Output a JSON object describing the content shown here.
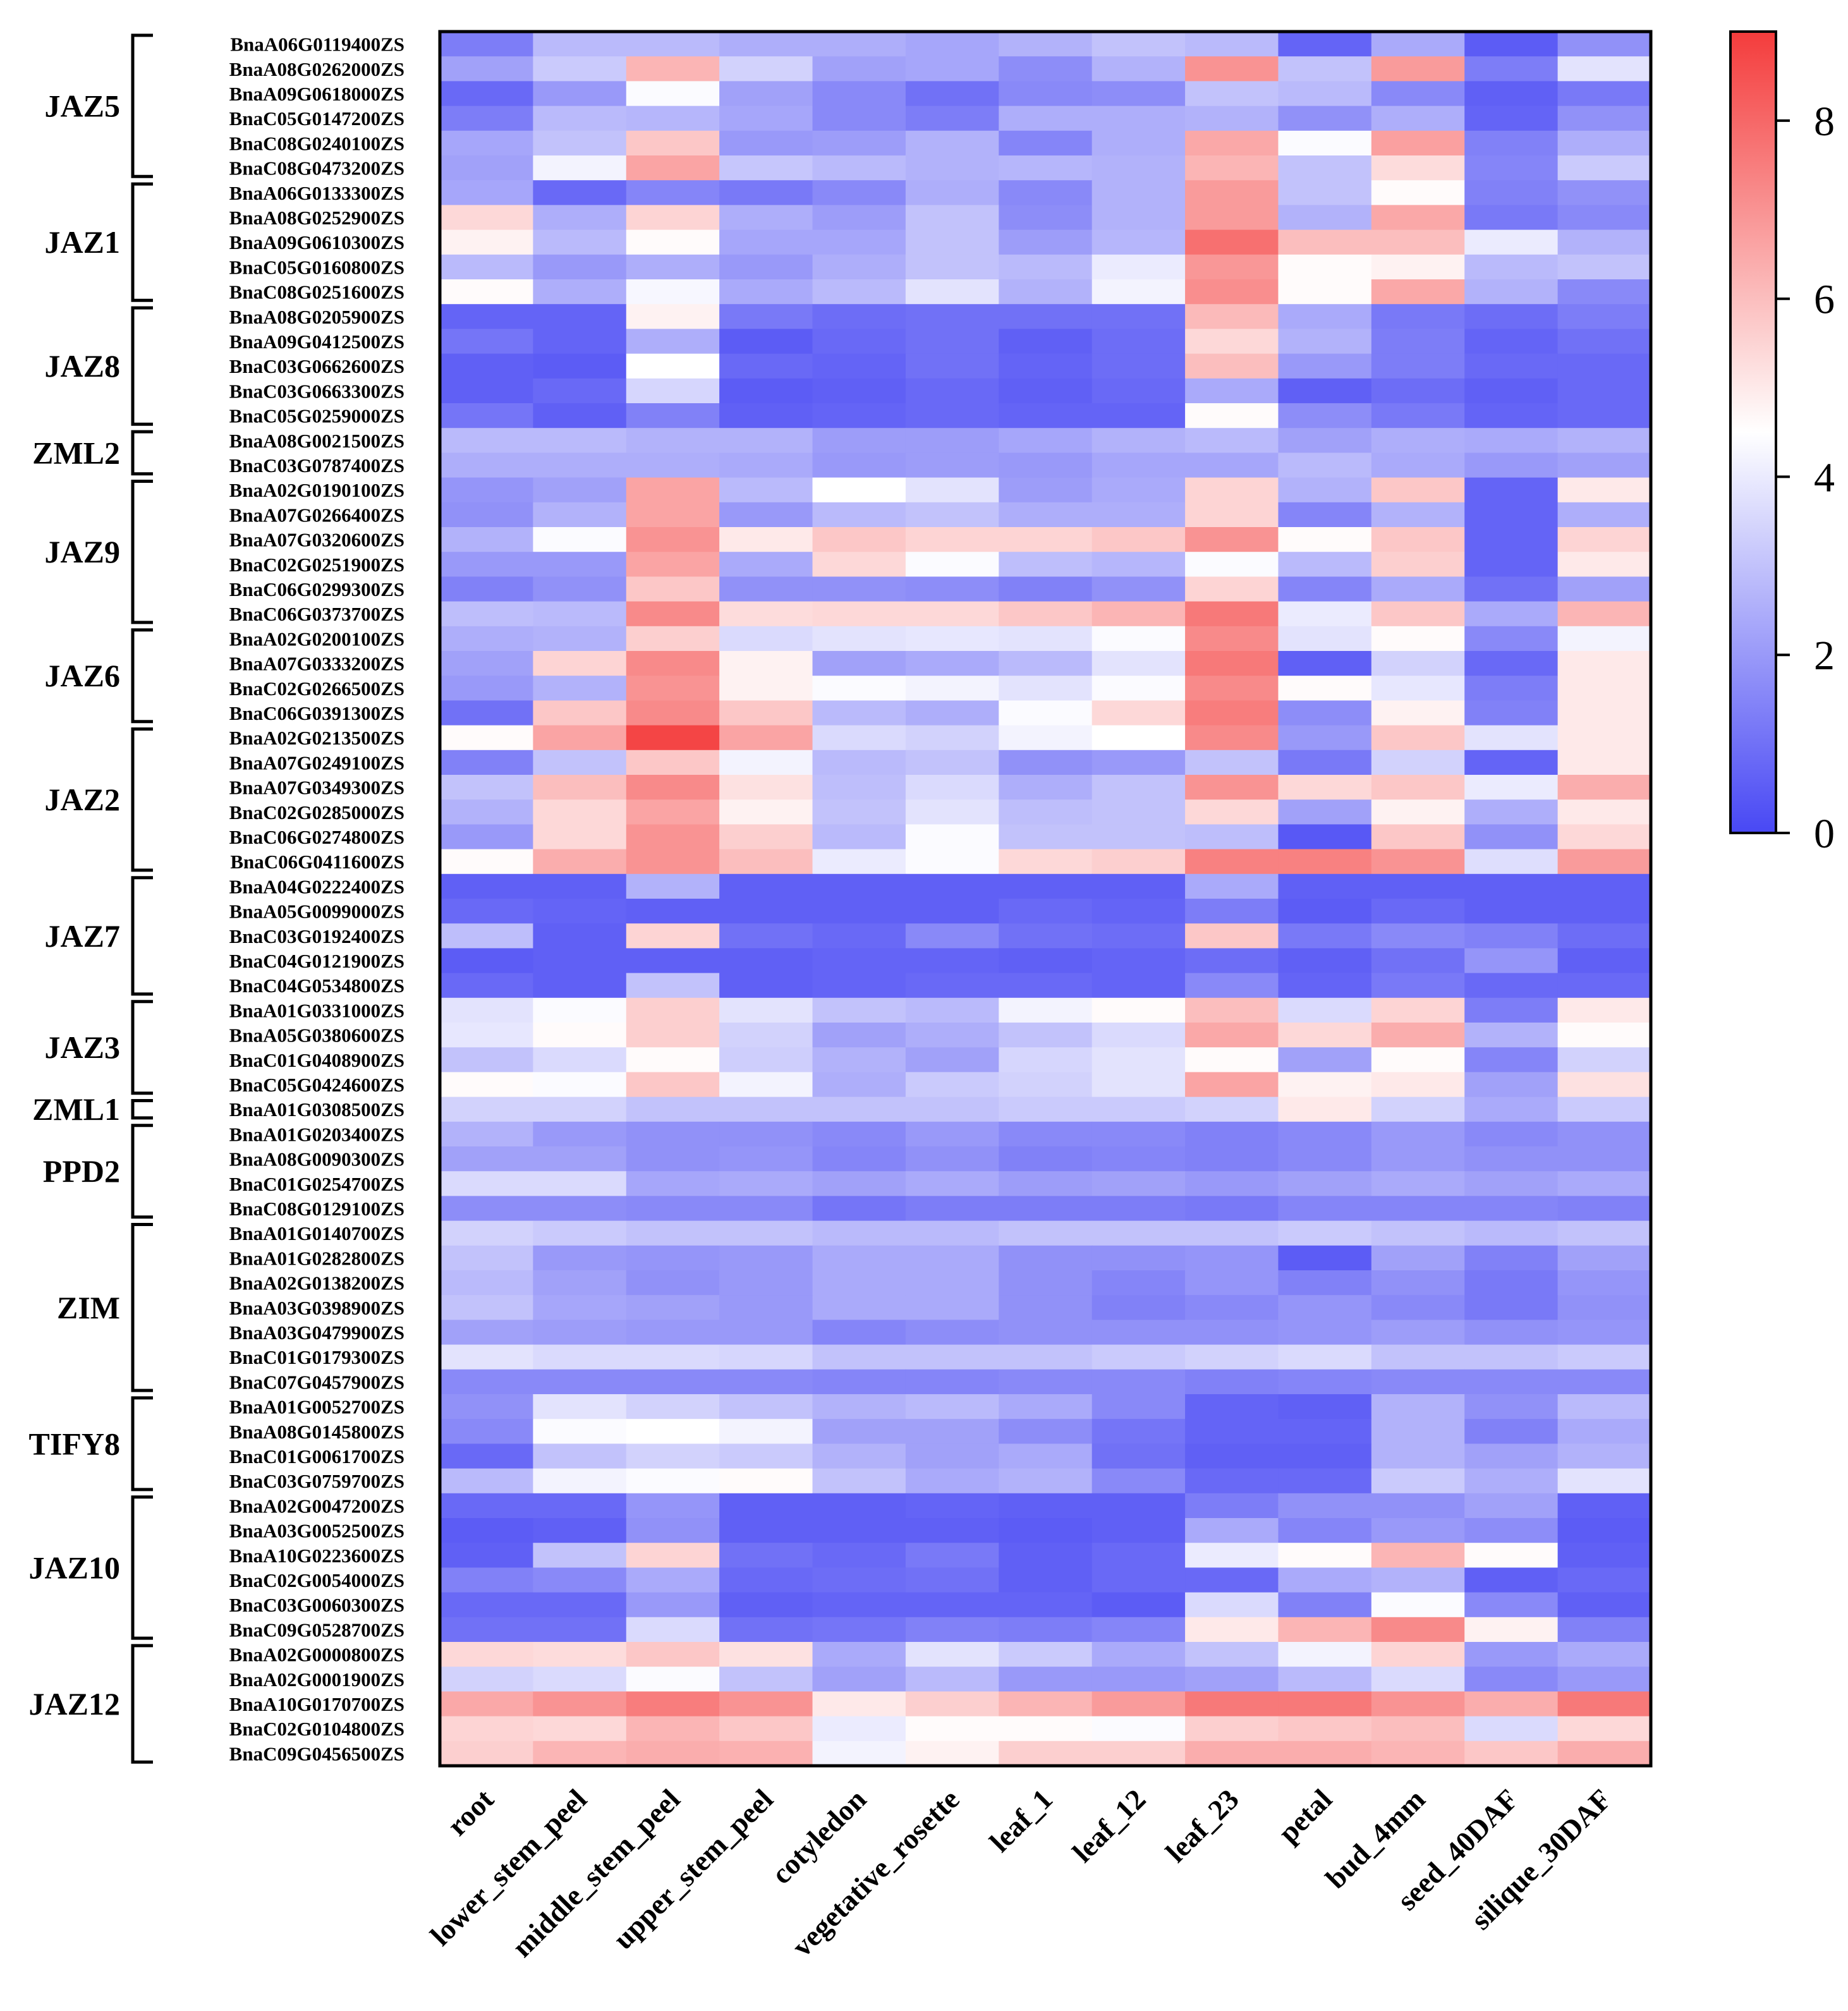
{
  "chart_data": {
    "type": "heatmap",
    "title": "",
    "columns": [
      "root",
      "lower_stem_peel",
      "middle_stem_peel",
      "upper_stem_peel",
      "cotyledon",
      "vegetative_rosette",
      "leaf_1",
      "leaf_12",
      "leaf_23",
      "petal",
      "bud_4mm",
      "seed_40DAF",
      "silique_30DAF"
    ],
    "rows": [
      "BnaA06G0119400ZS",
      "BnaA08G0262000ZS",
      "BnaA09G0618000ZS",
      "BnaC05G0147200ZS",
      "BnaC08G0240100ZS",
      "BnaC08G0473200ZS",
      "BnaA06G0133300ZS",
      "BnaA08G0252900ZS",
      "BnaA09G0610300ZS",
      "BnaC05G0160800ZS",
      "BnaC08G0251600ZS",
      "BnaA08G0205900ZS",
      "BnaA09G0412500ZS",
      "BnaC03G0662600ZS",
      "BnaC03G0663300ZS",
      "BnaC05G0259000ZS",
      "BnaA08G0021500ZS",
      "BnaC03G0787400ZS",
      "BnaA02G0190100ZS",
      "BnaA07G0266400ZS",
      "BnaA07G0320600ZS",
      "BnaC02G0251900ZS",
      "BnaC06G0299300ZS",
      "BnaC06G0373700ZS",
      "BnaA02G0200100ZS",
      "BnaA07G0333200ZS",
      "BnaC02G0266500ZS",
      "BnaC06G0391300ZS",
      "BnaA02G0213500ZS",
      "BnaA07G0249100ZS",
      "BnaA07G0349300ZS",
      "BnaC02G0285000ZS",
      "BnaC06G0274800ZS",
      "BnaC06G0411600ZS",
      "BnaA04G0222400ZS",
      "BnaA05G0099000ZS",
      "BnaC03G0192400ZS",
      "BnaC04G0121900ZS",
      "BnaC04G0534800ZS",
      "BnaA01G0331000ZS",
      "BnaA05G0380600ZS",
      "BnaC01G0408900ZS",
      "BnaC05G0424600ZS",
      "BnaA01G0308500ZS",
      "BnaA01G0203400ZS",
      "BnaA08G0090300ZS",
      "BnaC01G0254700ZS",
      "BnaC08G0129100ZS",
      "BnaA01G0140700ZS",
      "BnaA01G0282800ZS",
      "BnaA02G0138200ZS",
      "BnaA03G0398900ZS",
      "BnaA03G0479900ZS",
      "BnaC01G0179300ZS",
      "BnaC07G0457900ZS",
      "BnaA01G0052700ZS",
      "BnaA08G0145800ZS",
      "BnaC01G0061700ZS",
      "BnaC03G0759700ZS",
      "BnaA02G0047200ZS",
      "BnaA03G0052500ZS",
      "BnaA10G0223600ZS",
      "BnaC02G0054000ZS",
      "BnaC03G0060300ZS",
      "BnaC09G0528700ZS",
      "BnaA02G0000800ZS",
      "BnaA02G0001900ZS",
      "BnaA10G0170700ZS",
      "BnaC02G0104800ZS",
      "BnaC09G0456500ZS"
    ],
    "groups": [
      {
        "name": "JAZ5",
        "start": 0,
        "end": 5
      },
      {
        "name": "JAZ1",
        "start": 6,
        "end": 10
      },
      {
        "name": "JAZ8",
        "start": 11,
        "end": 15
      },
      {
        "name": "ZML2",
        "start": 16,
        "end": 17
      },
      {
        "name": "JAZ9",
        "start": 18,
        "end": 23
      },
      {
        "name": "JAZ6",
        "start": 24,
        "end": 27
      },
      {
        "name": "JAZ2",
        "start": 28,
        "end": 33
      },
      {
        "name": "JAZ7",
        "start": 34,
        "end": 38
      },
      {
        "name": "JAZ3",
        "start": 39,
        "end": 42
      },
      {
        "name": "ZML1",
        "start": 43,
        "end": 43
      },
      {
        "name": "PPD2",
        "start": 44,
        "end": 47
      },
      {
        "name": "ZIM",
        "start": 48,
        "end": 54
      },
      {
        "name": "TIFY8",
        "start": 55,
        "end": 58
      },
      {
        "name": "JAZ10",
        "start": 59,
        "end": 64
      },
      {
        "name": "JAZ12",
        "start": 65,
        "end": 69
      }
    ],
    "values": [
      [
        1.3,
        2.8,
        2.8,
        2.5,
        2.5,
        2.3,
        2.6,
        3.0,
        2.8,
        0.7,
        2.4,
        0.5,
        1.8
      ],
      [
        2.2,
        3.2,
        6.2,
        3.4,
        2.2,
        2.3,
        1.7,
        2.6,
        7.0,
        3.0,
        6.8,
        1.3,
        3.8
      ],
      [
        0.8,
        2.0,
        4.4,
        2.2,
        1.6,
        1.0,
        1.6,
        1.7,
        3.0,
        2.8,
        1.6,
        0.6,
        1.2
      ],
      [
        1.3,
        2.8,
        2.7,
        2.3,
        1.6,
        1.3,
        2.5,
        2.5,
        2.6,
        1.8,
        2.5,
        0.7,
        1.8
      ],
      [
        2.3,
        3.0,
        5.8,
        2.0,
        2.1,
        2.6,
        1.5,
        2.5,
        6.5,
        4.4,
        6.7,
        1.4,
        2.5
      ],
      [
        2.2,
        4.2,
        6.6,
        3.1,
        2.8,
        2.6,
        2.7,
        2.6,
        6.2,
        3.0,
        5.3,
        1.5,
        3.2
      ],
      [
        2.3,
        0.8,
        1.5,
        1.2,
        1.6,
        2.5,
        1.6,
        2.6,
        6.8,
        3.0,
        4.6,
        1.4,
        1.8
      ],
      [
        5.4,
        2.5,
        5.5,
        2.5,
        2.1,
        3.0,
        1.7,
        2.6,
        6.8,
        2.6,
        6.5,
        1.2,
        1.6
      ],
      [
        4.8,
        2.8,
        4.6,
        2.3,
        2.3,
        3.0,
        2.1,
        2.7,
        7.8,
        6.0,
        6.0,
        4.0,
        2.6
      ],
      [
        2.8,
        2.0,
        2.5,
        2.0,
        2.5,
        3.0,
        2.8,
        4.0,
        6.9,
        4.6,
        4.8,
        2.8,
        3.0
      ],
      [
        4.6,
        2.5,
        4.3,
        2.4,
        2.8,
        3.8,
        2.6,
        4.2,
        7.1,
        4.6,
        6.5,
        2.6,
        1.6
      ],
      [
        0.7,
        0.7,
        4.8,
        1.2,
        0.9,
        1.0,
        1.0,
        1.0,
        6.1,
        2.4,
        1.2,
        0.9,
        1.3
      ],
      [
        1.1,
        0.7,
        2.5,
        0.5,
        0.8,
        1.0,
        0.6,
        0.9,
        5.4,
        2.6,
        1.3,
        0.7,
        1.0
      ],
      [
        0.6,
        0.5,
        4.5,
        0.8,
        0.7,
        1.0,
        0.7,
        0.9,
        6.0,
        2.0,
        1.3,
        0.8,
        0.8
      ],
      [
        0.6,
        0.8,
        3.5,
        0.5,
        0.6,
        0.8,
        0.6,
        0.8,
        2.4,
        0.6,
        0.9,
        0.6,
        0.8
      ],
      [
        1.1,
        0.6,
        1.4,
        0.6,
        0.7,
        0.8,
        0.7,
        0.7,
        4.6,
        1.7,
        1.2,
        0.7,
        0.8
      ],
      [
        2.8,
        2.8,
        2.6,
        2.6,
        2.1,
        2.1,
        2.3,
        2.6,
        2.8,
        2.2,
        2.5,
        2.4,
        2.6
      ],
      [
        2.5,
        2.5,
        2.5,
        2.4,
        2.0,
        2.1,
        2.0,
        2.3,
        2.3,
        2.8,
        2.4,
        2.0,
        2.2
      ],
      [
        1.9,
        2.2,
        6.6,
        2.8,
        4.5,
        3.8,
        2.1,
        2.4,
        5.5,
        2.6,
        5.8,
        0.7,
        5.0
      ],
      [
        1.8,
        2.6,
        6.6,
        2.0,
        2.8,
        3.0,
        2.5,
        2.5,
        5.5,
        1.5,
        2.6,
        0.7,
        2.5
      ],
      [
        2.6,
        4.4,
        7.0,
        5.0,
        5.8,
        5.5,
        5.5,
        5.8,
        7.0,
        4.6,
        5.8,
        0.7,
        5.5
      ],
      [
        2.0,
        2.0,
        6.6,
        2.4,
        5.4,
        4.4,
        2.9,
        2.7,
        4.4,
        2.8,
        5.6,
        0.7,
        5.0
      ],
      [
        1.4,
        1.8,
        5.8,
        1.8,
        1.8,
        1.7,
        1.4,
        1.8,
        5.5,
        1.5,
        2.4,
        1.0,
        2.2
      ],
      [
        2.9,
        2.8,
        7.2,
        5.3,
        5.4,
        5.4,
        5.8,
        6.2,
        7.6,
        4.0,
        5.8,
        2.4,
        6.2
      ],
      [
        2.5,
        2.6,
        5.6,
        3.6,
        3.8,
        3.9,
        3.8,
        4.4,
        7.2,
        3.8,
        4.6,
        1.6,
        4.2
      ],
      [
        2.2,
        5.5,
        7.2,
        4.8,
        2.2,
        2.4,
        2.8,
        3.8,
        7.6,
        0.6,
        3.4,
        0.8,
        5.0
      ],
      [
        2.0,
        2.6,
        7.0,
        4.8,
        4.4,
        4.2,
        3.8,
        4.4,
        7.2,
        4.6,
        3.9,
        1.3,
        5.0
      ],
      [
        1.0,
        5.8,
        7.2,
        5.8,
        2.8,
        2.5,
        4.4,
        5.4,
        7.5,
        1.7,
        4.8,
        1.4,
        5.0
      ],
      [
        4.6,
        6.6,
        8.8,
        6.6,
        3.6,
        3.4,
        4.2,
        4.5,
        7.2,
        2.0,
        5.8,
        3.8,
        5.0
      ],
      [
        1.4,
        3.0,
        5.8,
        4.2,
        2.8,
        3.0,
        1.8,
        2.0,
        3.0,
        1.2,
        3.4,
        0.7,
        5.0
      ],
      [
        3.0,
        6.0,
        7.2,
        5.2,
        2.9,
        3.6,
        2.5,
        3.0,
        7.0,
        5.4,
        5.8,
        4.0,
        6.4
      ],
      [
        2.6,
        5.4,
        6.6,
        4.8,
        3.0,
        3.8,
        2.9,
        3.0,
        5.4,
        2.2,
        4.8,
        2.5,
        5.0
      ],
      [
        2.0,
        5.4,
        7.0,
        5.6,
        2.8,
        4.4,
        3.0,
        3.0,
        2.9,
        0.4,
        5.8,
        1.8,
        5.4
      ],
      [
        4.6,
        6.4,
        7.0,
        6.0,
        4.0,
        4.4,
        5.4,
        5.6,
        7.4,
        7.4,
        7.0,
        3.7,
        6.8
      ],
      [
        0.6,
        0.6,
        2.6,
        0.6,
        0.6,
        0.6,
        0.6,
        0.6,
        2.4,
        0.6,
        0.6,
        0.6,
        0.6
      ],
      [
        0.8,
        0.7,
        0.6,
        0.6,
        0.6,
        0.6,
        0.8,
        0.7,
        1.3,
        0.5,
        0.8,
        0.6,
        0.6
      ],
      [
        2.9,
        0.6,
        5.5,
        1.0,
        0.8,
        1.6,
        1.0,
        0.9,
        5.8,
        1.2,
        1.6,
        1.4,
        0.9
      ],
      [
        0.5,
        0.6,
        0.6,
        0.6,
        0.7,
        0.7,
        0.6,
        0.7,
        0.9,
        0.6,
        1.0,
        1.9,
        0.6
      ],
      [
        0.8,
        0.6,
        3.0,
        0.6,
        0.7,
        0.8,
        0.8,
        0.7,
        1.6,
        0.7,
        1.2,
        0.8,
        0.8
      ],
      [
        3.8,
        4.4,
        5.6,
        3.8,
        3.0,
        2.8,
        4.2,
        4.6,
        6.0,
        3.6,
        5.5,
        1.3,
        5.0
      ],
      [
        3.9,
        4.6,
        5.6,
        3.4,
        2.2,
        2.5,
        3.0,
        3.6,
        6.5,
        5.4,
        6.4,
        2.6,
        4.6
      ],
      [
        3.0,
        3.6,
        4.6,
        3.3,
        2.6,
        2.2,
        3.5,
        3.8,
        4.6,
        2.2,
        4.6,
        1.5,
        3.4
      ],
      [
        4.6,
        4.4,
        5.8,
        4.2,
        2.5,
        3.2,
        3.4,
        3.8,
        6.6,
        4.8,
        5.0,
        2.2,
        5.2
      ],
      [
        3.4,
        3.4,
        3.0,
        3.0,
        3.0,
        3.0,
        3.2,
        3.2,
        3.4,
        5.0,
        3.4,
        2.4,
        3.2
      ],
      [
        2.6,
        2.0,
        1.8,
        1.8,
        1.6,
        2.0,
        1.6,
        1.6,
        1.4,
        1.6,
        2.0,
        1.6,
        1.8
      ],
      [
        2.2,
        2.2,
        1.8,
        1.9,
        1.5,
        1.8,
        1.4,
        1.5,
        1.4,
        1.6,
        2.0,
        1.8,
        1.8
      ],
      [
        3.6,
        3.6,
        2.3,
        2.4,
        2.2,
        2.4,
        2.1,
        2.2,
        2.0,
        2.2,
        2.4,
        2.2,
        2.4
      ],
      [
        1.7,
        1.7,
        1.6,
        1.6,
        1.1,
        1.3,
        1.3,
        1.3,
        1.2,
        1.5,
        1.5,
        1.5,
        1.4
      ],
      [
        3.4,
        3.2,
        3.0,
        3.0,
        2.8,
        2.8,
        3.0,
        3.0,
        3.0,
        3.2,
        3.0,
        2.8,
        3.0
      ],
      [
        3.0,
        2.0,
        1.9,
        2.0,
        2.4,
        2.4,
        1.8,
        1.8,
        1.9,
        0.5,
        2.2,
        1.4,
        2.2
      ],
      [
        2.8,
        2.2,
        1.8,
        2.0,
        2.4,
        2.4,
        1.8,
        1.5,
        1.9,
        1.4,
        1.8,
        1.2,
        1.9
      ],
      [
        3.0,
        2.3,
        2.2,
        2.0,
        2.4,
        2.4,
        1.8,
        1.4,
        1.6,
        1.9,
        1.6,
        1.2,
        1.8
      ],
      [
        2.2,
        2.1,
        2.0,
        2.0,
        1.5,
        1.7,
        1.8,
        1.8,
        1.8,
        1.9,
        2.1,
        1.8,
        1.9
      ],
      [
        3.8,
        3.6,
        3.6,
        3.5,
        3.0,
        3.0,
        3.0,
        3.2,
        3.4,
        3.6,
        3.0,
        3.0,
        3.2
      ],
      [
        1.6,
        1.6,
        1.6,
        1.6,
        1.5,
        1.5,
        1.6,
        1.6,
        1.4,
        1.5,
        1.6,
        1.6,
        1.6
      ],
      [
        1.8,
        3.8,
        3.4,
        3.0,
        2.6,
        2.8,
        2.4,
        1.6,
        0.7,
        0.6,
        2.6,
        1.8,
        2.8
      ],
      [
        1.6,
        4.4,
        4.5,
        4.2,
        2.2,
        2.2,
        1.7,
        1.1,
        0.7,
        0.7,
        2.6,
        1.4,
        2.4
      ],
      [
        0.8,
        3.0,
        3.4,
        3.2,
        2.6,
        2.2,
        2.4,
        1.0,
        0.6,
        0.6,
        2.6,
        2.2,
        2.6
      ],
      [
        2.8,
        4.2,
        4.4,
        4.6,
        3.0,
        2.4,
        2.6,
        1.6,
        0.8,
        0.8,
        3.2,
        2.5,
        3.8
      ],
      [
        0.8,
        0.8,
        1.9,
        0.6,
        0.6,
        0.7,
        0.6,
        0.6,
        1.3,
        1.8,
        1.8,
        2.2,
        0.6
      ],
      [
        0.5,
        0.6,
        1.8,
        0.6,
        0.6,
        0.6,
        0.5,
        0.6,
        2.4,
        1.5,
        2.0,
        1.7,
        0.5
      ],
      [
        0.6,
        3.0,
        5.5,
        1.0,
        0.8,
        1.2,
        0.6,
        0.8,
        4.0,
        4.6,
        6.2,
        4.6,
        0.6
      ],
      [
        1.4,
        1.6,
        2.4,
        0.8,
        0.9,
        1.0,
        0.6,
        0.8,
        0.8,
        2.4,
        2.6,
        0.6,
        0.8
      ],
      [
        0.8,
        0.8,
        2.0,
        0.6,
        0.7,
        0.7,
        0.7,
        0.5,
        3.6,
        1.4,
        4.4,
        1.6,
        0.6
      ],
      [
        1.0,
        1.0,
        3.6,
        1.0,
        1.1,
        1.4,
        1.3,
        1.5,
        5.0,
        6.2,
        7.2,
        4.8,
        1.4
      ],
      [
        5.4,
        5.3,
        5.8,
        5.2,
        2.4,
        3.8,
        3.2,
        2.4,
        3.0,
        4.2,
        5.5,
        2.0,
        2.4
      ],
      [
        3.4,
        3.6,
        4.4,
        3.0,
        2.2,
        2.8,
        2.0,
        2.0,
        2.2,
        2.8,
        3.6,
        1.6,
        2.0
      ],
      [
        6.5,
        7.0,
        7.5,
        7.0,
        5.0,
        5.6,
        6.2,
        6.8,
        7.6,
        7.6,
        7.0,
        6.4,
        7.6
      ],
      [
        5.5,
        5.4,
        6.2,
        5.8,
        4.0,
        4.6,
        4.6,
        4.4,
        5.6,
        5.8,
        6.0,
        3.6,
        5.4
      ],
      [
        5.6,
        6.2,
        6.4,
        6.3,
        4.2,
        4.8,
        5.6,
        5.6,
        6.4,
        6.4,
        6.2,
        5.8,
        6.4
      ]
    ],
    "colorbar": {
      "min": 0,
      "max": 9,
      "ticks": [
        0,
        2,
        4,
        6,
        8
      ],
      "colors": {
        "low": "#4848f4",
        "mid": "#ffffff",
        "high": "#f43c3c"
      },
      "midpoint": 4.5
    },
    "xlabel": "",
    "ylabel": ""
  }
}
